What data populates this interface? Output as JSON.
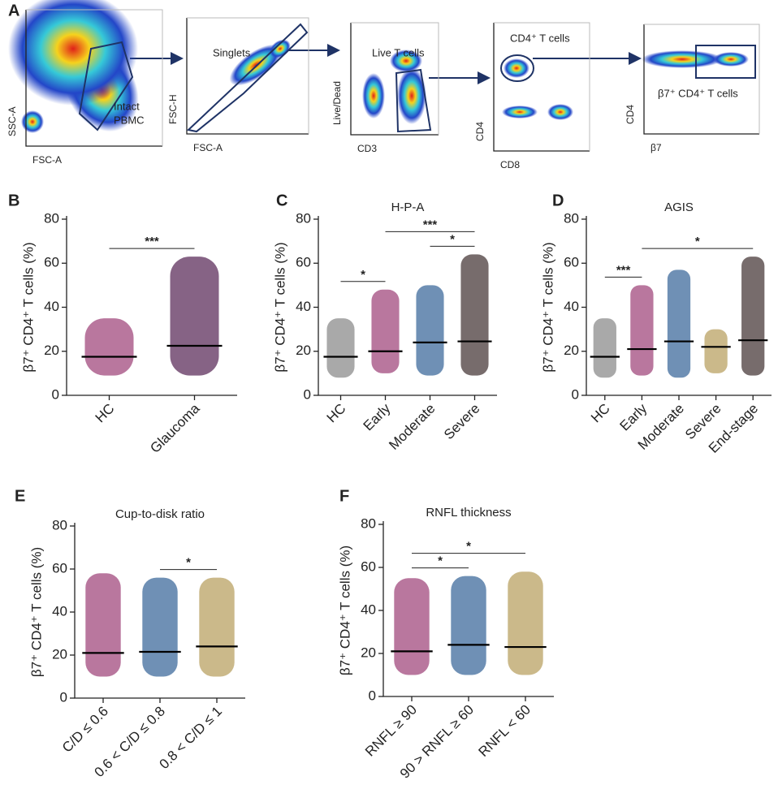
{
  "gating": {
    "panel": "A",
    "plots": [
      {
        "x_label": "FSC-A",
        "y_label": "SSC-A",
        "gate_label": [
          "Intact",
          "PBMC"
        ]
      },
      {
        "x_label": "FSC-A",
        "y_label": "FSC-H",
        "gate_label": [
          "Singlets"
        ]
      },
      {
        "x_label": "CD3",
        "y_label": "Live/Dead",
        "gate_label": [
          "Live T cells"
        ]
      },
      {
        "x_label": "CD8",
        "y_label": "CD4",
        "gate_label": [
          "CD4⁺ T cells"
        ]
      },
      {
        "x_label": "β7",
        "y_label": "CD4",
        "gate_label": [
          "β7⁺ CD4⁺ T cells"
        ]
      }
    ]
  },
  "chart_data": [
    {
      "type": "dot",
      "panel": "B",
      "ylabel": "β7⁺ CD4⁺ T cells (%)",
      "categories": [
        "HC",
        "Glaucoma"
      ],
      "colors": [
        "#a24a7e",
        "#5e2f5c"
      ],
      "values": [
        17.5,
        22.5
      ],
      "ranges": [
        [
          9,
          35
        ],
        [
          9,
          63
        ]
      ],
      "ylim": [
        0,
        80
      ],
      "yticks": [
        0,
        20,
        40,
        60,
        80
      ],
      "comparisons": [
        {
          "groups": [
            0,
            1
          ],
          "label": "***"
        }
      ]
    },
    {
      "type": "dot",
      "panel": "C",
      "title": "H-P-A",
      "ylabel": "β7⁺ CD4⁺ T cells (%)",
      "categories": [
        "HC",
        "Early",
        "Moderate",
        "Severe"
      ],
      "colors": [
        "#8c8c8c",
        "#a24a7e",
        "#3f6b9c",
        "#4a3b3b"
      ],
      "values": [
        17.5,
        20,
        24,
        24.5
      ],
      "ranges": [
        [
          8,
          35
        ],
        [
          10,
          48
        ],
        [
          9,
          50
        ],
        [
          9,
          64
        ]
      ],
      "ylim": [
        0,
        80
      ],
      "yticks": [
        0,
        20,
        40,
        60,
        80
      ],
      "comparisons": [
        {
          "groups": [
            0,
            1
          ],
          "label": "*"
        },
        {
          "groups": [
            2,
            3
          ],
          "label": "*"
        },
        {
          "groups": [
            1,
            3
          ],
          "label": "***"
        }
      ]
    },
    {
      "type": "dot",
      "panel": "D",
      "title": "AGIS",
      "ylabel": "β7⁺ CD4⁺ T cells (%)",
      "categories": [
        "HC",
        "Early",
        "Moderate",
        "Severe",
        "End-stage"
      ],
      "colors": [
        "#8c8c8c",
        "#a24a7e",
        "#3f6b9c",
        "#b9a263",
        "#4a3b3b"
      ],
      "values": [
        17.5,
        21,
        24.5,
        22,
        25
      ],
      "ranges": [
        [
          8,
          35
        ],
        [
          9,
          50
        ],
        [
          8,
          57
        ],
        [
          10,
          30
        ],
        [
          9,
          63
        ]
      ],
      "ylim": [
        0,
        80
      ],
      "yticks": [
        0,
        20,
        40,
        60,
        80
      ],
      "comparisons": [
        {
          "groups": [
            0,
            1
          ],
          "label": "***"
        },
        {
          "groups": [
            1,
            4
          ],
          "label": "*"
        }
      ]
    },
    {
      "type": "dot",
      "panel": "E",
      "title": "Cup-to-disk ratio",
      "ylabel": "β7⁺ CD4⁺ T cells (%)",
      "categories": [
        "C/D ≤ 0.6",
        "0.6 < C/D ≤ 0.8",
        "0.8 < C/D ≤ 1"
      ],
      "colors": [
        "#a24a7e",
        "#3f6b9c",
        "#b9a263"
      ],
      "values": [
        21,
        21.5,
        24
      ],
      "ranges": [
        [
          10,
          58
        ],
        [
          10,
          56
        ],
        [
          10,
          56
        ]
      ],
      "ylim": [
        0,
        80
      ],
      "yticks": [
        0,
        20,
        40,
        60,
        80
      ],
      "comparisons": [
        {
          "groups": [
            1,
            2
          ],
          "label": "*"
        }
      ]
    },
    {
      "type": "dot",
      "panel": "F",
      "title": "RNFL thickness",
      "ylabel": "β7⁺ CD4⁺ T cells (%)",
      "categories": [
        "RNFL ≥ 90",
        "90 > RNFL ≥ 60",
        "RNFL < 60"
      ],
      "colors": [
        "#a24a7e",
        "#3f6b9c",
        "#b9a263"
      ],
      "values": [
        21,
        24,
        23
      ],
      "ranges": [
        [
          10,
          55
        ],
        [
          10,
          56
        ],
        [
          10,
          58
        ]
      ],
      "ylim": [
        0,
        80
      ],
      "yticks": [
        0,
        20,
        40,
        60,
        80
      ],
      "comparisons": [
        {
          "groups": [
            0,
            1
          ],
          "label": "*"
        },
        {
          "groups": [
            0,
            2
          ],
          "label": "*"
        }
      ]
    }
  ]
}
